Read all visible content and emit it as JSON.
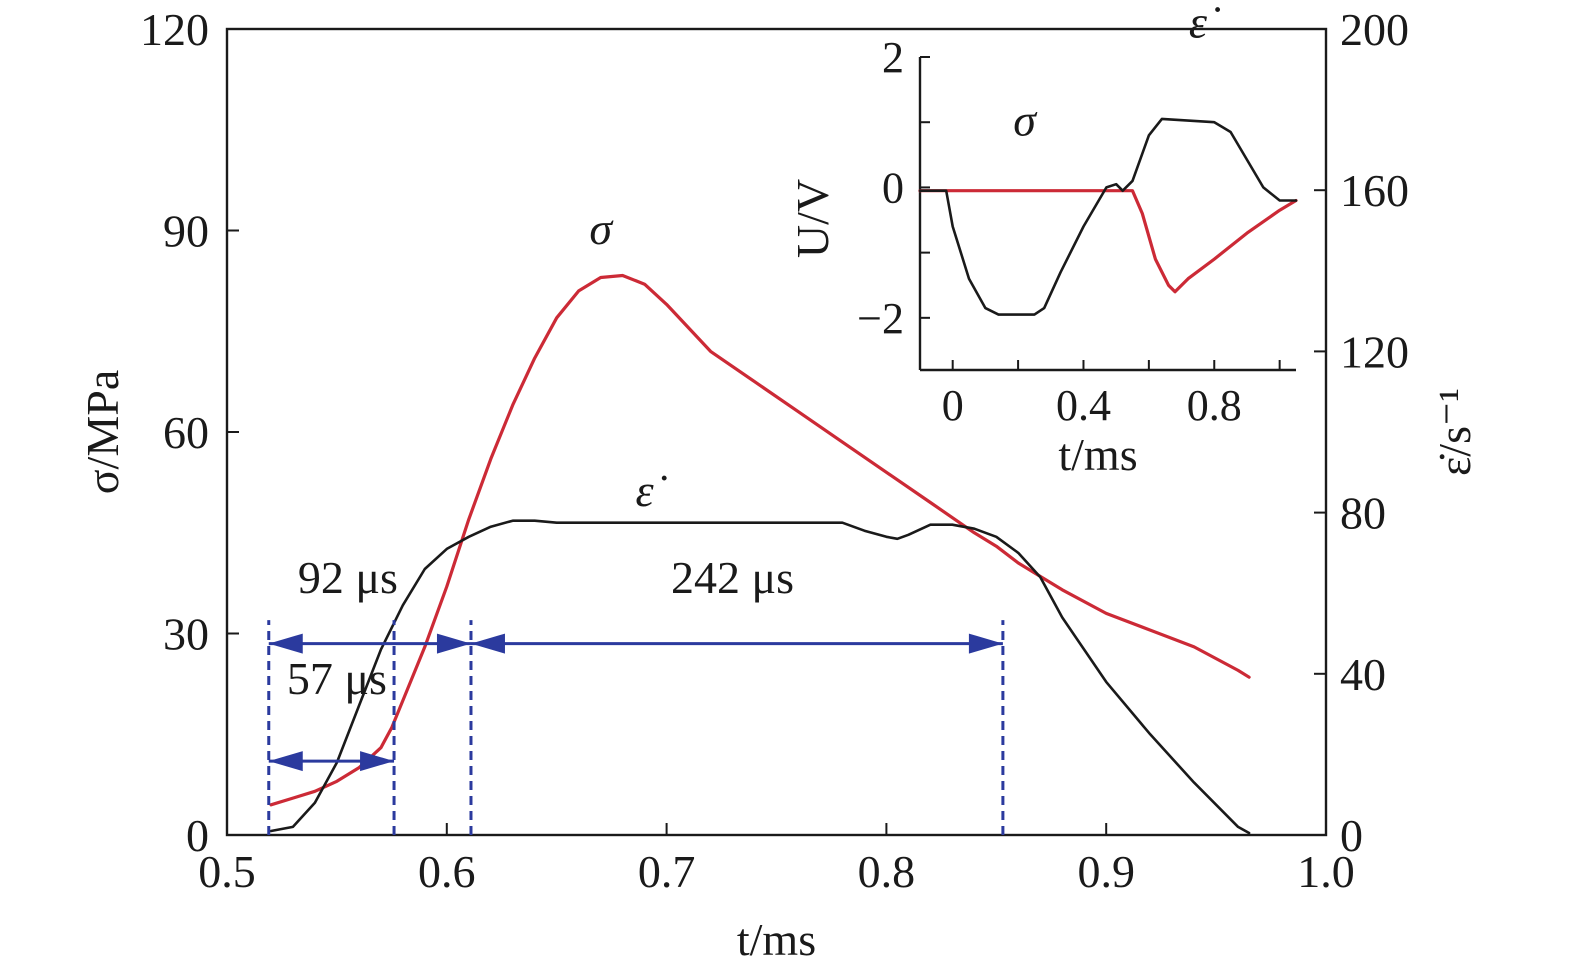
{
  "chart_data": [
    {
      "type": "line",
      "xlabel": "t/ms",
      "ylabel": "σ/MPa",
      "y2label": "ε̇/s⁻¹",
      "xlim": [
        0.5,
        1.0
      ],
      "ylim": [
        0,
        120
      ],
      "y2lim": [
        0,
        200
      ],
      "xticks": [
        "0.5",
        "0.6",
        "0.7",
        "0.8",
        "0.9",
        "1.0"
      ],
      "yticks": [
        "0",
        "30",
        "60",
        "90",
        "120"
      ],
      "y2ticks": [
        "0",
        "40",
        "80",
        "120",
        "160",
        "200"
      ],
      "grid": false,
      "series": [
        {
          "name": "σ",
          "axis": "left",
          "color": "#cc2a36",
          "x": [
            0.52,
            0.53,
            0.54,
            0.55,
            0.56,
            0.565,
            0.57,
            0.575,
            0.58,
            0.59,
            0.6,
            0.61,
            0.62,
            0.63,
            0.64,
            0.65,
            0.66,
            0.67,
            0.68,
            0.69,
            0.7,
            0.72,
            0.74,
            0.76,
            0.78,
            0.8,
            0.82,
            0.84,
            0.85,
            0.86,
            0.88,
            0.9,
            0.92,
            0.94,
            0.96,
            0.965
          ],
          "y": [
            4.5,
            5.5,
            6.5,
            8,
            10,
            11.5,
            13,
            16,
            20,
            28,
            37,
            47,
            56,
            64,
            71,
            77,
            81,
            83,
            83.3,
            82,
            79,
            72,
            67.5,
            63,
            58.5,
            54,
            49.5,
            45,
            43,
            40.5,
            36.5,
            33,
            30.5,
            28,
            24.5,
            23.5
          ]
        },
        {
          "name": "ε̇",
          "axis": "right",
          "color": "#1a1a1a",
          "x": [
            0.52,
            0.53,
            0.54,
            0.55,
            0.56,
            0.57,
            0.58,
            0.59,
            0.6,
            0.61,
            0.62,
            0.63,
            0.64,
            0.65,
            0.7,
            0.75,
            0.78,
            0.79,
            0.8,
            0.805,
            0.81,
            0.82,
            0.83,
            0.84,
            0.85,
            0.86,
            0.87,
            0.88,
            0.9,
            0.92,
            0.94,
            0.96,
            0.965
          ],
          "y": [
            1,
            2,
            8,
            18,
            32,
            46,
            57,
            66,
            71,
            74,
            76.5,
            78,
            78,
            77.5,
            77.5,
            77.5,
            77.5,
            75.5,
            74,
            73.5,
            74.5,
            77,
            77,
            76,
            74,
            70,
            64,
            54,
            38,
            25,
            13,
            2,
            0.5
          ]
        }
      ],
      "annotations": [
        {
          "text": "σ",
          "x": 0.67,
          "y": 88
        },
        {
          "text": "ε̇",
          "x": 0.69,
          "y": 49
        },
        {
          "text": "92 μs",
          "x": 0.555,
          "y": 36
        },
        {
          "text": "57 μs",
          "x": 0.55,
          "y": 21
        },
        {
          "text": "242 μs",
          "x": 0.73,
          "y": 36
        }
      ],
      "intervals": [
        {
          "label": "92 μs",
          "from": 0.519,
          "to": 0.611,
          "y": 28.5
        },
        {
          "label": "57 μs",
          "from": 0.519,
          "to": 0.576,
          "y": 11
        },
        {
          "label": "242 μs",
          "from": 0.611,
          "to": 0.853,
          "y": 28.5
        }
      ],
      "markers_vertical": [
        0.519,
        0.576,
        0.611,
        0.853
      ]
    },
    {
      "type": "line",
      "xlabel": "t/ms",
      "ylabel": "U/V",
      "xlim": [
        -0.1,
        1.05
      ],
      "ylim": [
        -2.8,
        2
      ],
      "xticks": [
        "0",
        "0.4",
        "0.8"
      ],
      "yticks": [
        "−2",
        "0",
        "2"
      ],
      "grid": false,
      "series": [
        {
          "name": "σ",
          "color": "#cc2a36",
          "x": [
            -0.1,
            0.0,
            0.2,
            0.4,
            0.55,
            0.58,
            0.62,
            0.66,
            0.68,
            0.72,
            0.8,
            0.9,
            1.0,
            1.05
          ],
          "y": [
            -0.05,
            -0.05,
            -0.05,
            -0.05,
            -0.05,
            -0.4,
            -1.1,
            -1.5,
            -1.6,
            -1.4,
            -1.1,
            -0.7,
            -0.35,
            -0.2
          ]
        },
        {
          "name": "ε̇",
          "color": "#1a1a1a",
          "x": [
            -0.1,
            -0.02,
            0.0,
            0.05,
            0.1,
            0.14,
            0.25,
            0.28,
            0.33,
            0.4,
            0.47,
            0.5,
            0.52,
            0.55,
            0.6,
            0.64,
            0.8,
            0.85,
            0.95,
            1.0,
            1.05
          ],
          "y": [
            -0.05,
            -0.05,
            -0.6,
            -1.4,
            -1.85,
            -1.95,
            -1.95,
            -1.85,
            -1.3,
            -0.6,
            0.0,
            0.05,
            -0.05,
            0.1,
            0.8,
            1.05,
            1.0,
            0.85,
            0.0,
            -0.2,
            -0.2
          ]
        }
      ],
      "annotations": [
        {
          "text": "σ",
          "x": 0.22,
          "y": 0.8
        },
        {
          "text": "ε̇",
          "x": 0.75,
          "y": 2.3
        }
      ]
    }
  ]
}
